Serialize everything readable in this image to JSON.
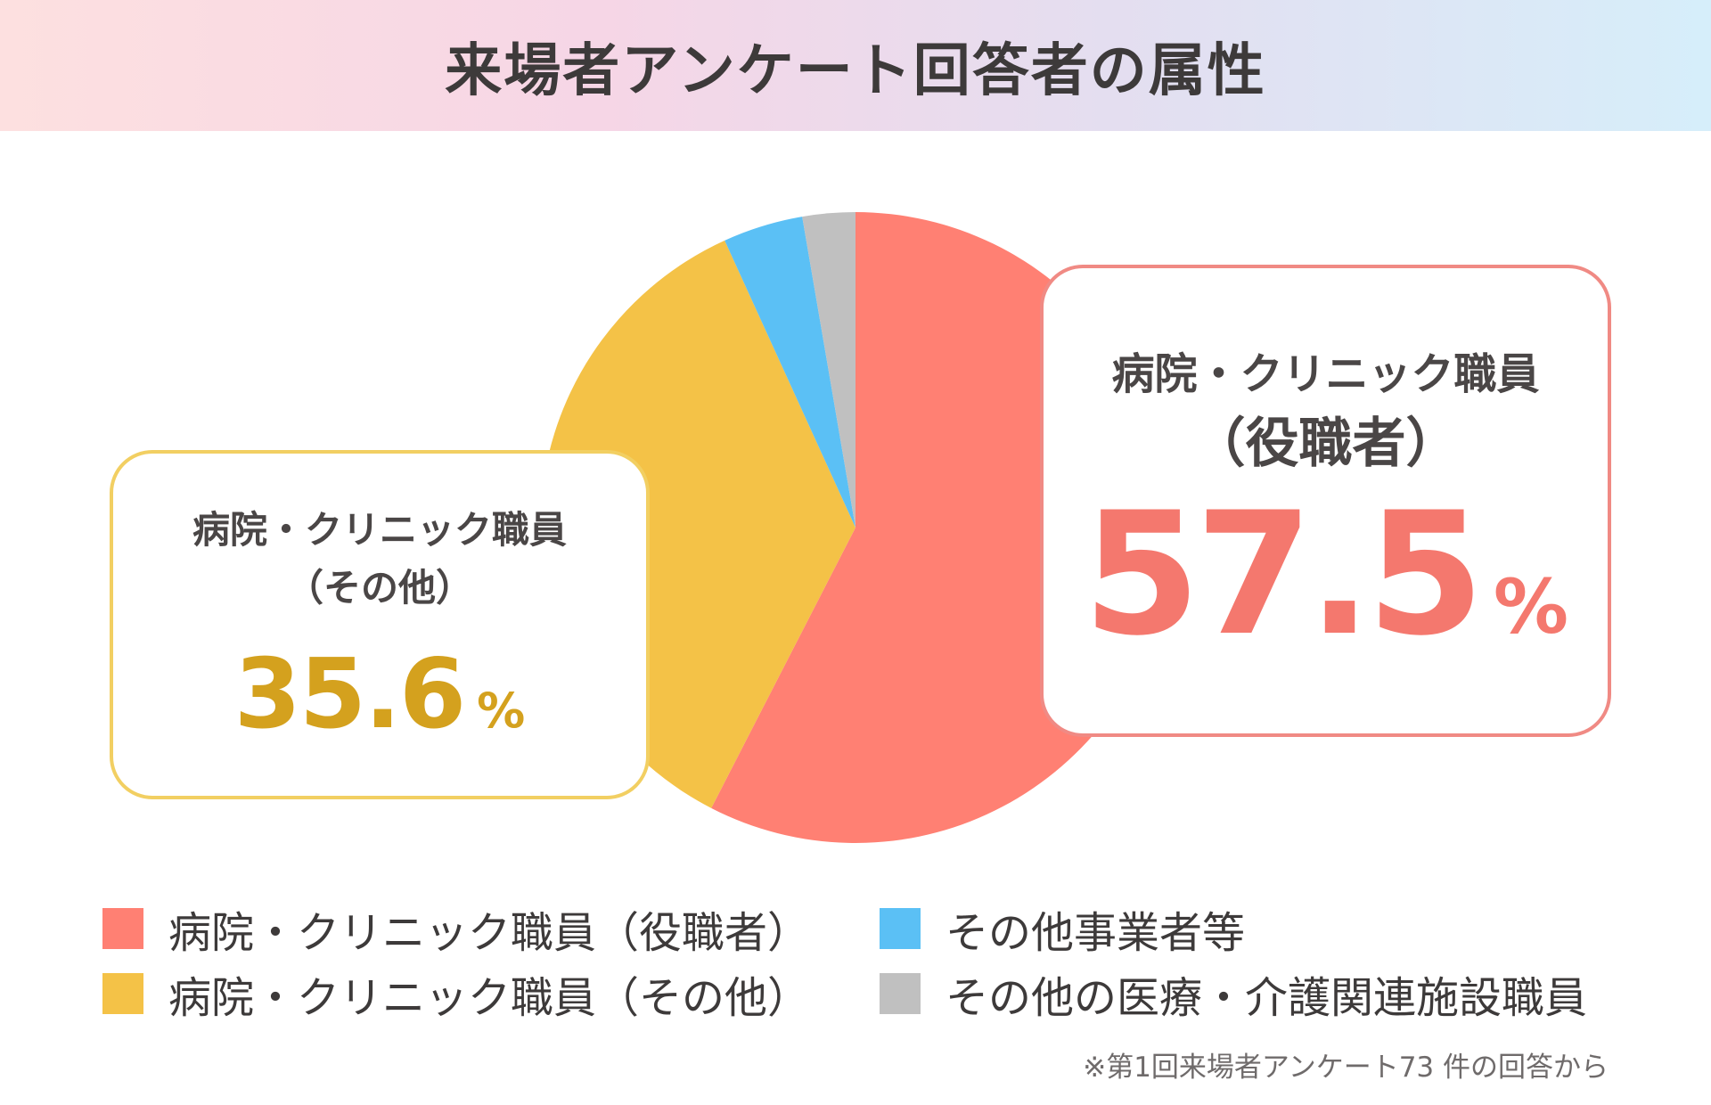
{
  "title": "来場者アンケート回答者の属性",
  "chart_data": {
    "type": "pie",
    "slices": [
      {
        "label": "病院・クリニック職員（役職者）",
        "value": 57.5,
        "color": "#ff8073"
      },
      {
        "label": "病院・クリニック職員（その他）",
        "value": 35.6,
        "color": "#f4c247"
      },
      {
        "label": "その他事業者等",
        "value": 4.1,
        "color": "#5bc0f5"
      },
      {
        "label": "その他の医療・介護関連施設職員",
        "value": 2.7,
        "color": "#c0c0c0"
      }
    ],
    "legend_position": "bottom"
  },
  "callouts": {
    "right": {
      "label": "病院・クリニック職員",
      "sub": "（役職者）",
      "percent": "57.5",
      "unit": "%"
    },
    "left": {
      "label": "病院・クリニック職員",
      "sub": "（その他）",
      "percent": "35.6",
      "unit": "%"
    }
  },
  "legend": [
    {
      "label": "病院・クリニック職員（役職者）",
      "color": "#ff8073"
    },
    {
      "label": "病院・クリニック職員（その他）",
      "color": "#f4c247"
    },
    {
      "label": "その他事業者等",
      "color": "#5bc0f5"
    },
    {
      "label": "その他の医療・介護関連施設職員",
      "color": "#c0c0c0"
    }
  ],
  "note": "※第1回来場者アンケート73 件の回答から"
}
